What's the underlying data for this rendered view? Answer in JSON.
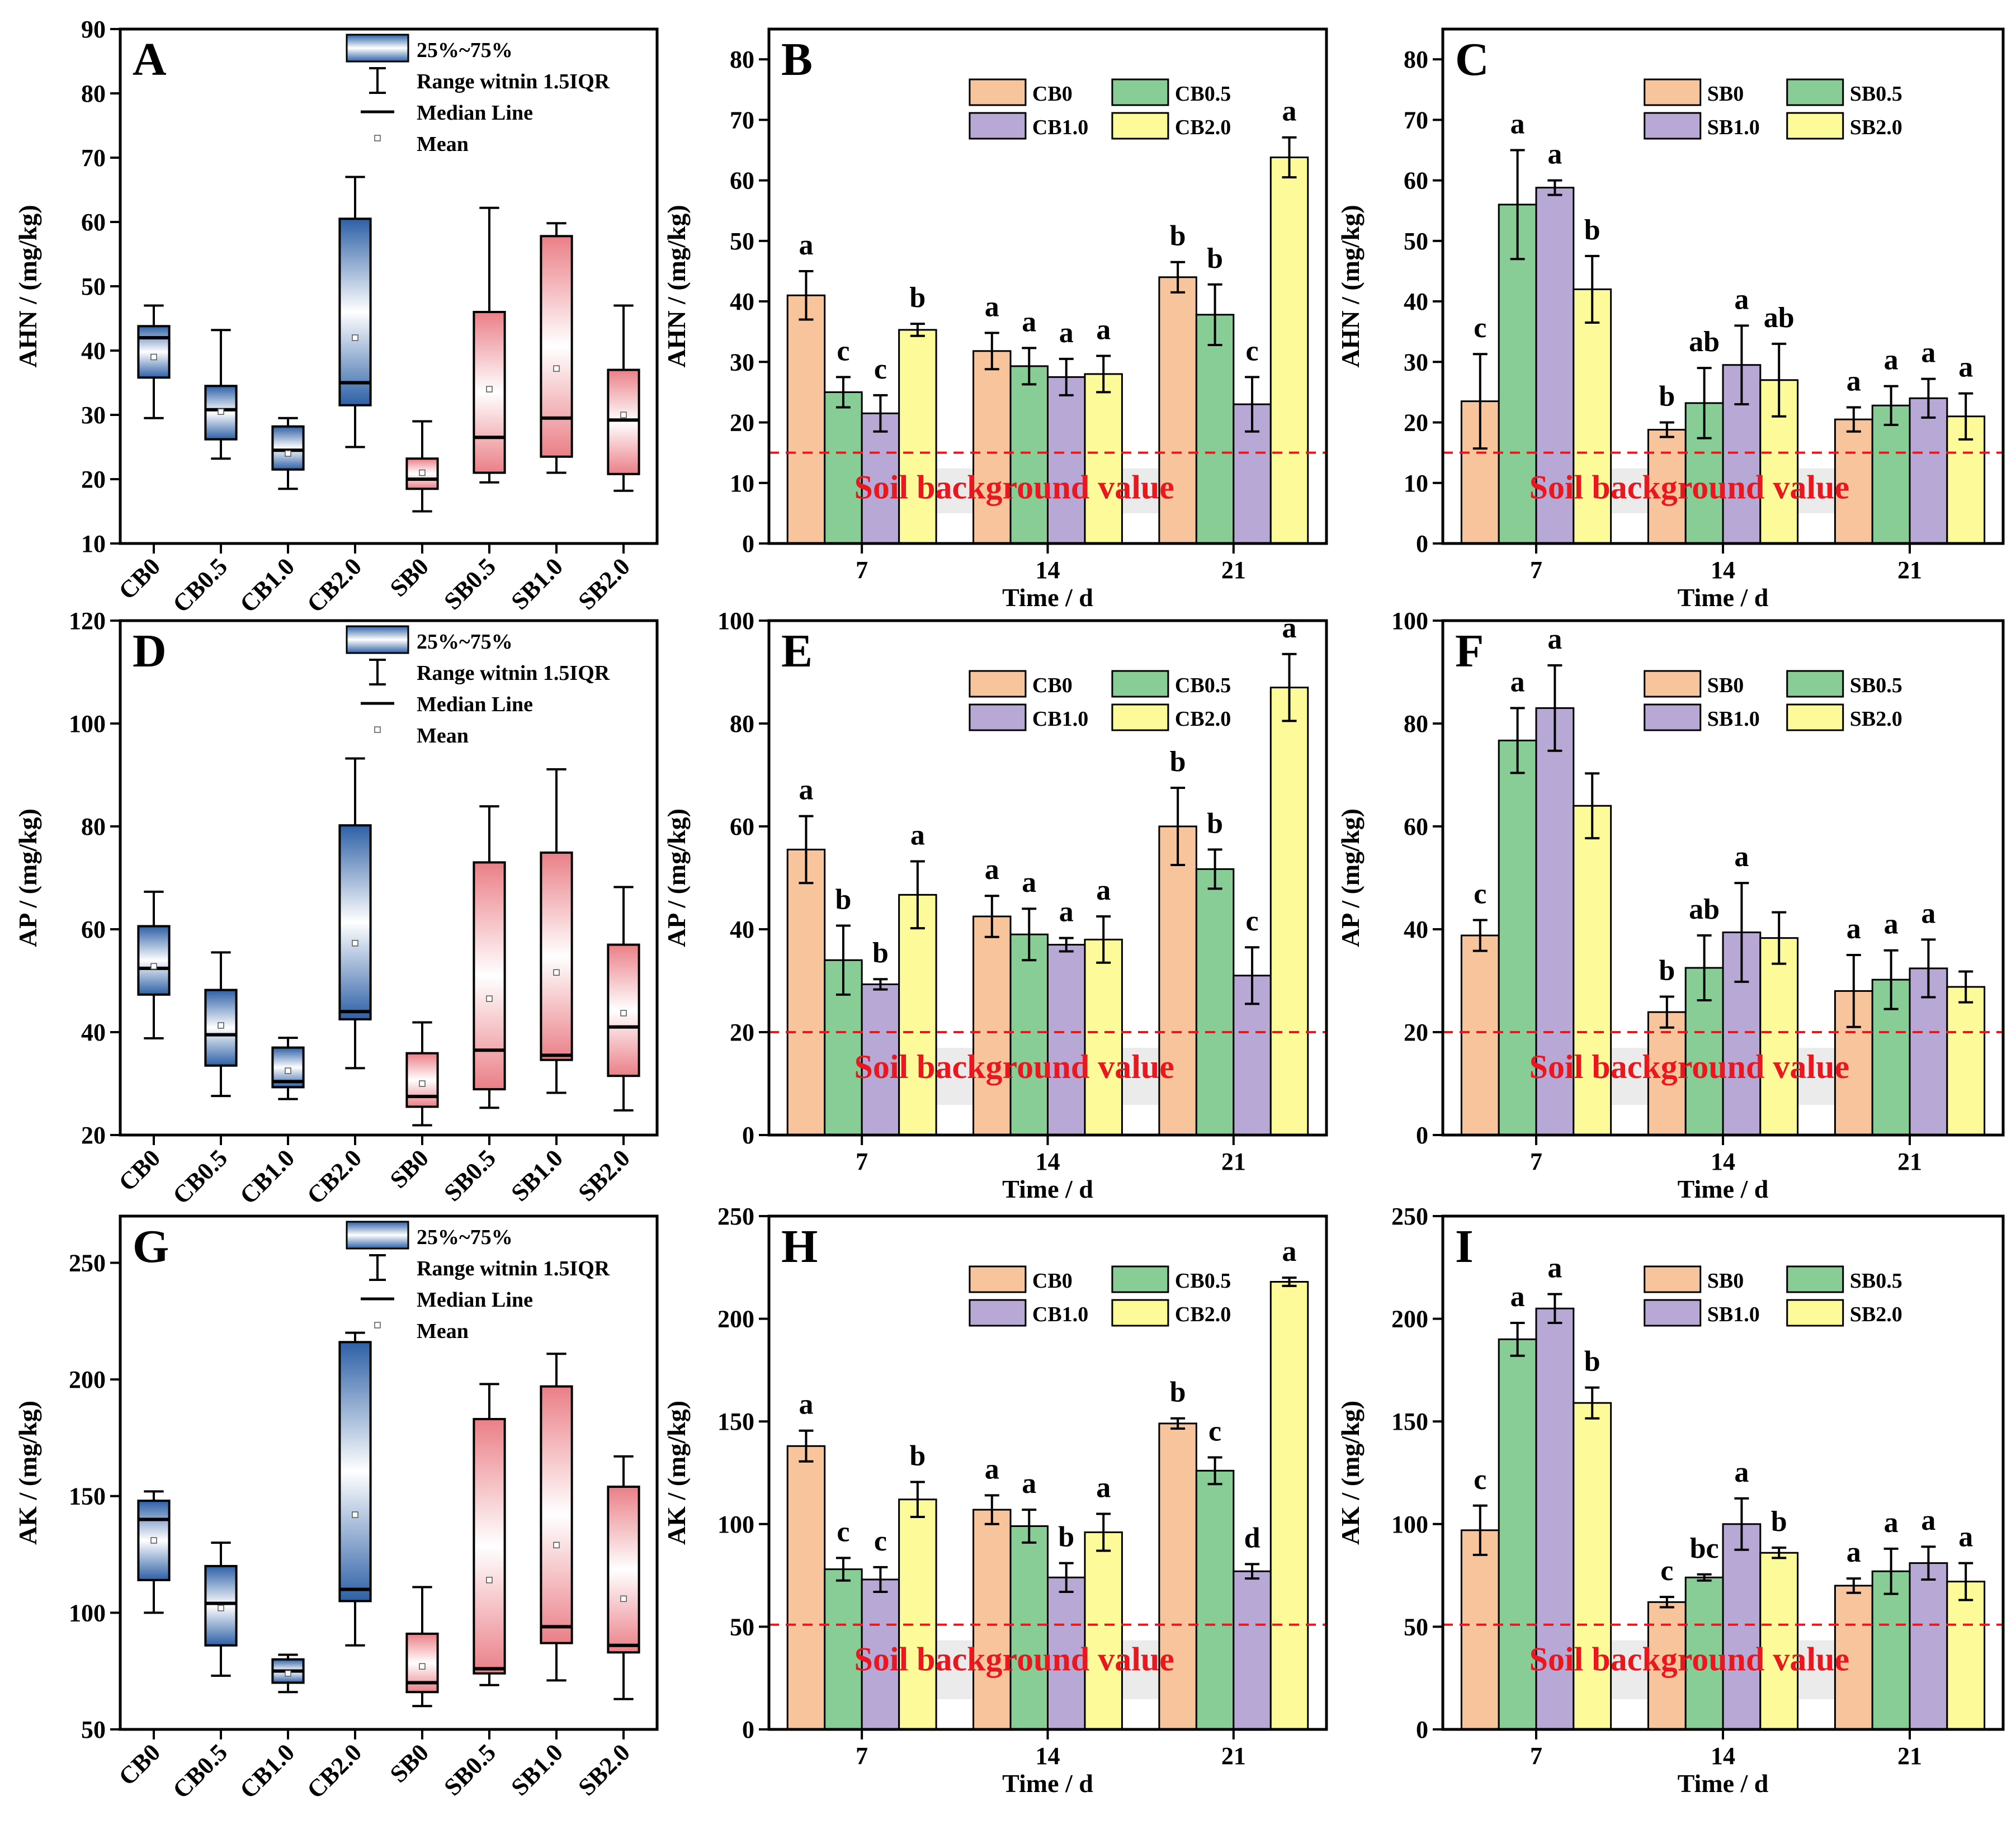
{
  "chart_data": [
    {
      "panel": "A",
      "type": "box",
      "ylabel": "AHN / (mg/kg)",
      "ylim": [
        10,
        90
      ],
      "yticks": [
        10,
        20,
        30,
        40,
        50,
        60,
        70,
        80,
        90
      ],
      "legend": [
        "25%~75%",
        "Range witnin 1.5IQR",
        "Median Line",
        "Mean"
      ],
      "boxes": [
        {
          "label": "CB0",
          "group": "CB",
          "min": 29.5,
          "q1": 35.8,
          "median": 42,
          "q3": 43.8,
          "max": 47,
          "mean": 39
        },
        {
          "label": "CB0.5",
          "group": "CB",
          "min": 23.2,
          "q1": 26.2,
          "median": 30.8,
          "q3": 34.5,
          "max": 43.2,
          "mean": 30.5
        },
        {
          "label": "CB1.0",
          "group": "CB",
          "min": 18.5,
          "q1": 21.5,
          "median": 24.5,
          "q3": 28.2,
          "max": 29.5,
          "mean": 24
        },
        {
          "label": "CB2.0",
          "group": "CB",
          "min": 25,
          "q1": 31.5,
          "median": 35,
          "q3": 60.5,
          "max": 67,
          "mean": 42
        },
        {
          "label": "SB0",
          "group": "SB",
          "min": 15,
          "q1": 18.5,
          "median": 20,
          "q3": 23.2,
          "max": 29,
          "mean": 21
        },
        {
          "label": "SB0.5",
          "group": "SB",
          "min": 19.5,
          "q1": 21,
          "median": 26.5,
          "q3": 46,
          "max": 62.2,
          "mean": 34
        },
        {
          "label": "SB1.0",
          "group": "SB",
          "min": 21,
          "q1": 23.5,
          "median": 29.5,
          "q3": 57.8,
          "max": 59.8,
          "mean": 37.2
        },
        {
          "label": "SB2.0",
          "group": "SB",
          "min": 18.2,
          "q1": 20.8,
          "median": 29.2,
          "q3": 37,
          "max": 47,
          "mean": 30
        }
      ]
    },
    {
      "panel": "B",
      "type": "bar",
      "ylabel": "AHN / (mg/kg)",
      "xlabel": "Time / d",
      "ylim": [
        0,
        85
      ],
      "yticks": [
        0,
        10,
        20,
        30,
        40,
        50,
        60,
        70,
        80
      ],
      "categories": [
        "7",
        "14",
        "21"
      ],
      "background_value": 15,
      "background_label": "Soil background value",
      "series": [
        {
          "name": "CB0",
          "color": "#f8c49c",
          "values": [
            41,
            31.8,
            44
          ],
          "errors": [
            4,
            3,
            2.5
          ],
          "letters": [
            "a",
            "a",
            "b"
          ]
        },
        {
          "name": "CB0.5",
          "color": "#88cc96",
          "values": [
            25,
            29.3,
            37.8
          ],
          "errors": [
            2.5,
            3,
            5
          ],
          "letters": [
            "c",
            "a",
            "b"
          ]
        },
        {
          "name": "CB1.0",
          "color": "#b8a8d6",
          "values": [
            21.5,
            27.5,
            23
          ],
          "errors": [
            3,
            3,
            4.5
          ],
          "letters": [
            "c",
            "a",
            "c"
          ]
        },
        {
          "name": "CB2.0",
          "color": "#fdfa9a",
          "values": [
            35.3,
            28,
            63.8
          ],
          "errors": [
            1,
            3,
            3.3
          ],
          "letters": [
            "b",
            "a",
            "a"
          ]
        }
      ]
    },
    {
      "panel": "C",
      "type": "bar",
      "ylabel": "AHN / (mg/kg)",
      "xlabel": "Time / d",
      "ylim": [
        0,
        85
      ],
      "yticks": [
        0,
        10,
        20,
        30,
        40,
        50,
        60,
        70,
        80
      ],
      "categories": [
        "7",
        "14",
        "21"
      ],
      "background_value": 15,
      "background_label": "Soil background value",
      "series": [
        {
          "name": "SB0",
          "color": "#f8c49c",
          "values": [
            23.5,
            18.8,
            20.5
          ],
          "errors": [
            7.8,
            1.2,
            2
          ],
          "letters": [
            "c",
            "b",
            "a"
          ]
        },
        {
          "name": "SB0.5",
          "color": "#88cc96",
          "values": [
            56,
            23.2,
            22.8
          ],
          "errors": [
            9,
            5.8,
            3.2
          ],
          "letters": [
            "a",
            "ab",
            "a"
          ]
        },
        {
          "name": "SB1.0",
          "color": "#b8a8d6",
          "values": [
            58.8,
            29.5,
            24
          ],
          "errors": [
            1.2,
            6.5,
            3.2
          ],
          "letters": [
            "a",
            "a",
            "a"
          ]
        },
        {
          "name": "SB2.0",
          "color": "#fdfa9a",
          "values": [
            42,
            27,
            21
          ],
          "errors": [
            5.5,
            6,
            3.8
          ],
          "letters": [
            "b",
            "ab",
            "a"
          ]
        }
      ]
    },
    {
      "panel": "D",
      "type": "box",
      "ylabel": "AP / (mg/kg)",
      "ylim": [
        20,
        120
      ],
      "yticks": [
        20,
        40,
        60,
        80,
        100,
        120
      ],
      "legend": [
        "25%~75%",
        "Range witnin 1.5IQR",
        "Median Line",
        "Mean"
      ],
      "boxes": [
        {
          "label": "CB0",
          "group": "CB",
          "min": 38.8,
          "q1": 47.3,
          "median": 52.4,
          "q3": 60.6,
          "max": 67.3,
          "mean": 52.8
        },
        {
          "label": "CB0.5",
          "group": "CB",
          "min": 27.6,
          "q1": 33.5,
          "median": 39.5,
          "q3": 48.2,
          "max": 55.5,
          "mean": 41.3
        },
        {
          "label": "CB1.0",
          "group": "CB",
          "min": 27,
          "q1": 29.3,
          "median": 30.4,
          "q3": 37,
          "max": 38.9,
          "mean": 32.5
        },
        {
          "label": "CB2.0",
          "group": "CB",
          "min": 33,
          "q1": 42.5,
          "median": 44,
          "q3": 80.2,
          "max": 93.2,
          "mean": 57.3
        },
        {
          "label": "SB0",
          "group": "SB",
          "min": 21.9,
          "q1": 25.5,
          "median": 27.5,
          "q3": 35.9,
          "max": 41.9,
          "mean": 30
        },
        {
          "label": "SB0.5",
          "group": "SB",
          "min": 25.3,
          "q1": 28.9,
          "median": 36.5,
          "q3": 73,
          "max": 83.9,
          "mean": 46.5
        },
        {
          "label": "SB1.0",
          "group": "SB",
          "min": 28.2,
          "q1": 34.6,
          "median": 35.5,
          "q3": 74.9,
          "max": 91.1,
          "mean": 51.6
        },
        {
          "label": "SB2.0",
          "group": "SB",
          "min": 24.8,
          "q1": 31.5,
          "median": 41,
          "q3": 57,
          "max": 68.2,
          "mean": 43.7
        }
      ]
    },
    {
      "panel": "E",
      "type": "bar",
      "ylabel": "AP / (mg/kg)",
      "xlabel": "Time / d",
      "ylim": [
        0,
        100
      ],
      "yticks": [
        0,
        20,
        40,
        60,
        80,
        100
      ],
      "categories": [
        "7",
        "14",
        "21"
      ],
      "background_value": 20,
      "background_label": "Soil background value",
      "series": [
        {
          "name": "CB0",
          "color": "#f8c49c",
          "values": [
            55.5,
            42.5,
            60
          ],
          "errors": [
            6.5,
            4,
            7.5
          ],
          "letters": [
            "a",
            "a",
            "b"
          ]
        },
        {
          "name": "CB0.5",
          "color": "#88cc96",
          "values": [
            34,
            39,
            51.7
          ],
          "errors": [
            6.7,
            5,
            3.8
          ],
          "letters": [
            "b",
            "a",
            "b"
          ]
        },
        {
          "name": "CB1.0",
          "color": "#b8a8d6",
          "values": [
            29.3,
            37,
            31
          ],
          "errors": [
            1,
            1.3,
            5.5
          ],
          "letters": [
            "b",
            "a",
            "c"
          ]
        },
        {
          "name": "CB2.0",
          "color": "#fdfa9a",
          "values": [
            46.7,
            38,
            87
          ],
          "errors": [
            6.5,
            4.5,
            6.5
          ],
          "letters": [
            "a",
            "a",
            "a"
          ]
        }
      ]
    },
    {
      "panel": "F",
      "type": "bar",
      "ylabel": "AP / (mg/kg)",
      "xlabel": "Time / d",
      "ylim": [
        0,
        100
      ],
      "yticks": [
        0,
        20,
        40,
        60,
        80,
        100
      ],
      "categories": [
        "7",
        "14",
        "21"
      ],
      "background_value": 20,
      "background_label": "Soil background value",
      "series": [
        {
          "name": "SB0",
          "color": "#f8c49c",
          "values": [
            38.8,
            23.9,
            28
          ],
          "errors": [
            3,
            3,
            7
          ],
          "letters": [
            "c",
            "b",
            "a"
          ]
        },
        {
          "name": "SB0.5",
          "color": "#88cc96",
          "values": [
            76.7,
            32.5,
            30.2
          ],
          "errors": [
            6.3,
            6.3,
            5.7
          ],
          "letters": [
            "a",
            "ab",
            "a"
          ]
        },
        {
          "name": "SB1.0",
          "color": "#b8a8d6",
          "values": [
            83,
            39.4,
            32.4
          ],
          "errors": [
            8.3,
            9.6,
            5.6
          ],
          "letters": [
            "a",
            "a",
            "a"
          ]
        },
        {
          "name": "SB2.0",
          "color": "#fdfa9a",
          "values": [
            64,
            38.3,
            28.8
          ],
          "errors": [
            6.3,
            5,
            3
          ]
        }
      ]
    },
    {
      "panel": "G",
      "type": "box",
      "ylabel": "AK / (mg/kg)",
      "ylim": [
        50,
        270
      ],
      "yticks": [
        50,
        100,
        150,
        200,
        250
      ],
      "legend": [
        "25%~75%",
        "Range witnin 1.5IQR",
        "Median Line",
        "Mean"
      ],
      "boxes": [
        {
          "label": "CB0",
          "group": "CB",
          "min": 100,
          "q1": 114,
          "median": 140,
          "q3": 148,
          "max": 152,
          "mean": 131
        },
        {
          "label": "CB0.5",
          "group": "CB",
          "min": 73,
          "q1": 86,
          "median": 104,
          "q3": 120,
          "max": 130,
          "mean": 102
        },
        {
          "label": "CB1.0",
          "group": "CB",
          "min": 66,
          "q1": 70,
          "median": 75,
          "q3": 80,
          "max": 82,
          "mean": 74
        },
        {
          "label": "CB2.0",
          "group": "CB",
          "min": 86,
          "q1": 105,
          "median": 110,
          "q3": 216,
          "max": 220,
          "mean": 142
        },
        {
          "label": "SB0",
          "group": "SB",
          "min": 60,
          "q1": 66,
          "median": 70,
          "q3": 91,
          "max": 111,
          "mean": 77
        },
        {
          "label": "SB0.5",
          "group": "SB",
          "min": 69,
          "q1": 74,
          "median": 76,
          "q3": 183,
          "max": 198,
          "mean": 114
        },
        {
          "label": "SB1.0",
          "group": "SB",
          "min": 71,
          "q1": 87,
          "median": 94,
          "q3": 197,
          "max": 211,
          "mean": 129
        },
        {
          "label": "SB2.0",
          "group": "SB",
          "min": 63,
          "q1": 83,
          "median": 86,
          "q3": 154,
          "max": 167,
          "mean": 106
        }
      ]
    },
    {
      "panel": "H",
      "type": "bar",
      "ylabel": "AK / (mg/kg)",
      "xlabel": "Time / d",
      "ylim": [
        0,
        250
      ],
      "yticks": [
        0,
        50,
        100,
        150,
        200,
        250
      ],
      "categories": [
        "7",
        "14",
        "21"
      ],
      "background_value": 51,
      "background_label": "Soil background value",
      "series": [
        {
          "name": "CB0",
          "color": "#f8c49c",
          "values": [
            138,
            107,
            149
          ],
          "errors": [
            7.5,
            7,
            2.5
          ],
          "letters": [
            "a",
            "a",
            "b"
          ]
        },
        {
          "name": "CB0.5",
          "color": "#88cc96",
          "values": [
            78,
            99,
            126
          ],
          "errors": [
            5.5,
            8,
            6.5
          ],
          "letters": [
            "c",
            "a",
            "c"
          ]
        },
        {
          "name": "CB1.0",
          "color": "#b8a8d6",
          "values": [
            73,
            74,
            77
          ],
          "errors": [
            6,
            7,
            3.5
          ],
          "letters": [
            "c",
            "b",
            "d"
          ]
        },
        {
          "name": "CB2.0",
          "color": "#fdfa9a",
          "values": [
            112,
            96,
            218
          ],
          "errors": [
            8.5,
            9,
            2
          ],
          "letters": [
            "b",
            "a",
            "a"
          ]
        }
      ]
    },
    {
      "panel": "I",
      "type": "bar",
      "ylabel": "AK / (mg/kg)",
      "xlabel": "Time / d",
      "ylim": [
        0,
        250
      ],
      "yticks": [
        0,
        50,
        100,
        150,
        200,
        250
      ],
      "categories": [
        "7",
        "14",
        "21"
      ],
      "background_value": 51,
      "background_label": "Soil background value",
      "series": [
        {
          "name": "SB0",
          "color": "#f8c49c",
          "values": [
            97,
            62,
            70
          ],
          "errors": [
            12,
            2.5,
            3.5
          ],
          "letters": [
            "c",
            "c",
            "a"
          ]
        },
        {
          "name": "SB0.5",
          "color": "#88cc96",
          "values": [
            190,
            74,
            77
          ],
          "errors": [
            8,
            1.5,
            11
          ],
          "letters": [
            "a",
            "bc",
            "a"
          ]
        },
        {
          "name": "SB1.0",
          "color": "#b8a8d6",
          "values": [
            205,
            100,
            81
          ],
          "errors": [
            7,
            12.5,
            8
          ],
          "letters": [
            "a",
            "a",
            "a"
          ]
        },
        {
          "name": "SB2.0",
          "color": "#fdfa9a",
          "values": [
            159,
            86,
            72
          ],
          "errors": [
            7.5,
            2.5,
            9
          ],
          "letters": [
            "b",
            "b",
            "a"
          ]
        }
      ]
    }
  ]
}
